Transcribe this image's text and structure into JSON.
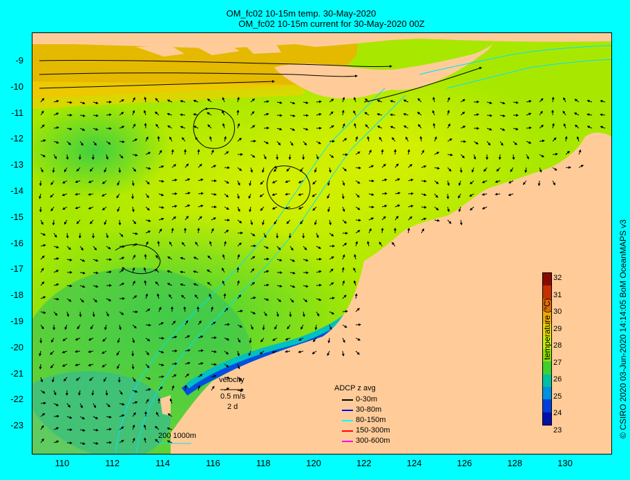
{
  "title_line1": "OM_fc02 10-15m temp. 30-May-2020",
  "title_line2": "OM_fc02 10-15m current for 30-May-2020 00Z",
  "credit": "© CSIRO 2020   03-Jun-2020 14:14:05 BoM OceanMAPS v3",
  "y_ticks": [
    "-9",
    "-10",
    "-11",
    "-12",
    "-13",
    "-14",
    "-15",
    "-16",
    "-17",
    "-18",
    "-19",
    "-20",
    "-21",
    "-22",
    "-23"
  ],
  "x_ticks": [
    "110",
    "112",
    "114",
    "116",
    "118",
    "120",
    "122",
    "124",
    "126",
    "128",
    "130"
  ],
  "colorbar": {
    "label": "temperature (°C)",
    "ticks": [
      "32",
      "31",
      "30",
      "29",
      "28",
      "27",
      "26",
      "25",
      "24",
      "23"
    ],
    "colors": [
      "#8a0a00",
      "#c83000",
      "#e06a00",
      "#f0a800",
      "#e8d800",
      "#c8f000",
      "#8ee000",
      "#3ed030",
      "#00c0a0",
      "#0090e0",
      "#0040d8",
      "#0010a8"
    ]
  },
  "velocity_legend": {
    "title": "velocity",
    "scale": "0.5 m/s",
    "duration": "2 d"
  },
  "adcp_legend": {
    "title": "ADCP z avg",
    "items": [
      {
        "label": "0-30m",
        "color": "#000000"
      },
      {
        "label": "30-80m",
        "color": "#0000ff"
      },
      {
        "label": "80-150m",
        "color": "#00ffff"
      },
      {
        "label": "150-300m",
        "color": "#ff0000"
      },
      {
        "label": "300-600m",
        "color": "#ff00ff"
      }
    ]
  },
  "isobath_legend": "200  1000m",
  "colors": {
    "frame_bg": "#00ffff",
    "land": "#ffcc99",
    "isobath": "#00e0ff"
  }
}
